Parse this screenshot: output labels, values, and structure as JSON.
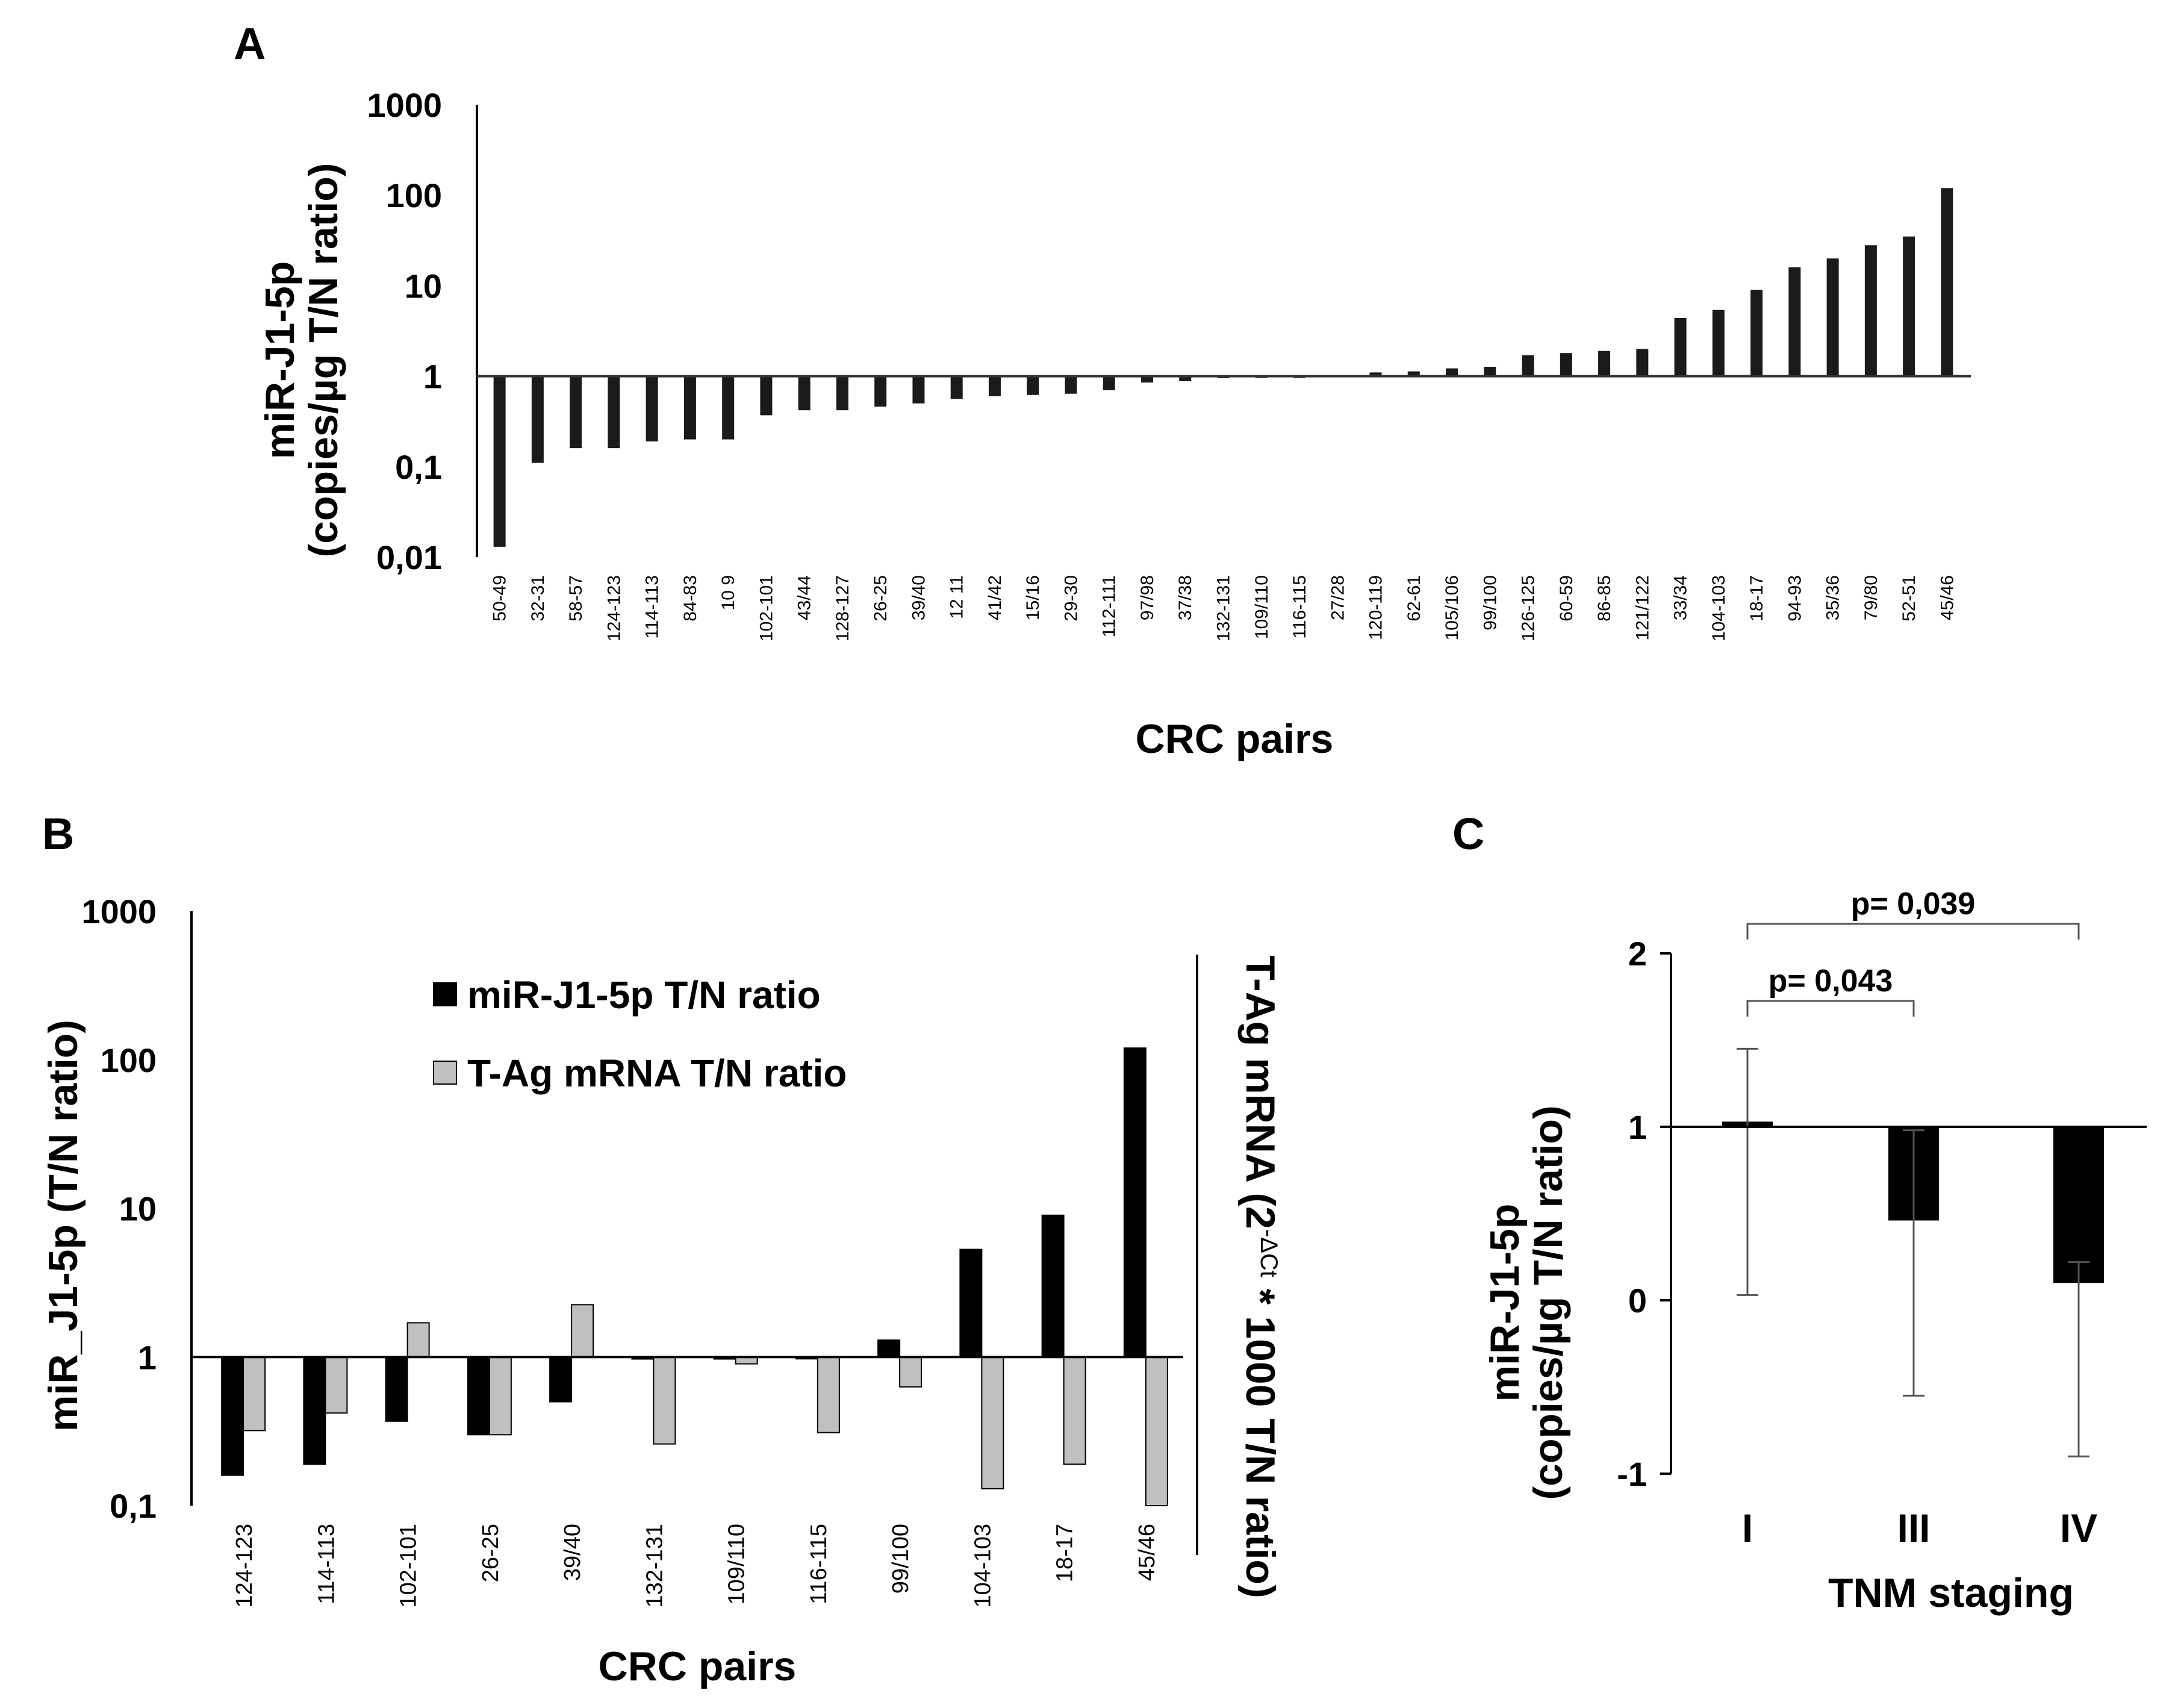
{
  "chart_data": [
    {
      "panel": "A",
      "type": "bar",
      "title": "",
      "xlabel": "CRC pairs",
      "ylabel": [
        "miR-J1-5p",
        "(copies/µg T/N ratio)"
      ],
      "yscale": "log",
      "ylim": [
        0.01,
        1000
      ],
      "baseline": 1,
      "yticks": [
        "1000",
        "100",
        "10",
        "1",
        "0,1",
        "0,01"
      ],
      "categories": [
        "50-49",
        "32-31",
        "58-57",
        "124-123",
        "114-113",
        "84-83",
        "10 9",
        "102-101",
        "43/44",
        "128-127",
        "26-25",
        "39/40",
        "12 11",
        "41/42",
        "15/16",
        "29-30",
        "112-111",
        "97/98",
        "37/38",
        "132-131",
        "109/110",
        "116-115",
        "27/28",
        "120-119",
        "62-61",
        "105/106",
        "99/100",
        "126-125",
        "60-59",
        "86-85",
        "121/122",
        "33/34",
        "104-103",
        "18-17",
        "94-93",
        "35/36",
        "79/80",
        "52-51",
        "45/46"
      ],
      "series": [
        {
          "name": "miR-J1-5p T/N ratio",
          "color": "#1a1a1a",
          "values": [
            0.013,
            0.11,
            0.16,
            0.16,
            0.19,
            0.2,
            0.2,
            0.37,
            0.42,
            0.42,
            0.46,
            0.5,
            0.56,
            0.6,
            0.62,
            0.64,
            0.7,
            0.85,
            0.88,
            0.95,
            0.97,
            0.99,
            1.02,
            1.1,
            1.13,
            1.22,
            1.27,
            1.7,
            1.8,
            1.9,
            2.0,
            4.4,
            5.4,
            9.0,
            16,
            20,
            28,
            35,
            120
          ]
        }
      ]
    },
    {
      "panel": "B",
      "type": "bar",
      "title": "",
      "xlabel": "CRC pairs",
      "ylabel": "miR_J1-5p (T/N ratio)",
      "ylabel_right": {
        "prefix": "T-Ag mRNA (2",
        "superscript": "-ΔCt",
        "suffix": " * 1000 T/N ratio)"
      },
      "yscale": "log",
      "ylim": [
        0.1,
        1000
      ],
      "baseline": 1,
      "yticks": [
        "1000",
        "100",
        "10",
        "1",
        "0,1"
      ],
      "legend_position": "top-left",
      "categories": [
        "124-123",
        "114-113",
        "102-101",
        "26-25",
        "39/40",
        "132-131",
        "109/110",
        "116-115",
        "99/100",
        "104-103",
        "18-17",
        "45/46"
      ],
      "series": [
        {
          "name": "miR-J1-5p T/N ratio",
          "color": "#000000",
          "values": [
            0.16,
            0.19,
            0.37,
            0.3,
            0.5,
            0.97,
            0.97,
            1.0,
            1.3,
            5.3,
            9.0,
            120
          ]
        },
        {
          "name": "T-Ag mRNA T/N ratio",
          "color": "#c0c0c0",
          "values": [
            0.32,
            0.42,
            1.7,
            0.3,
            2.25,
            0.26,
            0.9,
            0.31,
            0.63,
            0.13,
            0.19,
            0.1
          ]
        }
      ]
    },
    {
      "panel": "C",
      "type": "bar",
      "title": "",
      "xlabel": "TNM staging",
      "ylabel": [
        "miR-J1-5p",
        "(copies/µg T/N ratio)"
      ],
      "ylim": [
        -1,
        2
      ],
      "baseline": 1,
      "yticks": [
        "2",
        "1",
        "0",
        "-1"
      ],
      "categories": [
        "I",
        "III",
        "IV"
      ],
      "series": [
        {
          "name": "miR-J1-5p",
          "color": "#000000",
          "values": [
            1.03,
            0.46,
            0.1
          ],
          "error_low": [
            0.03,
            -0.55,
            -0.9
          ],
          "error_high": [
            1.45,
            0.98,
            0.22
          ]
        }
      ],
      "comparisons": [
        {
          "from": "I",
          "to": "III",
          "label": "p= 0,043"
        },
        {
          "from": "I",
          "to": "IV",
          "label": "p= 0,039"
        }
      ]
    }
  ]
}
